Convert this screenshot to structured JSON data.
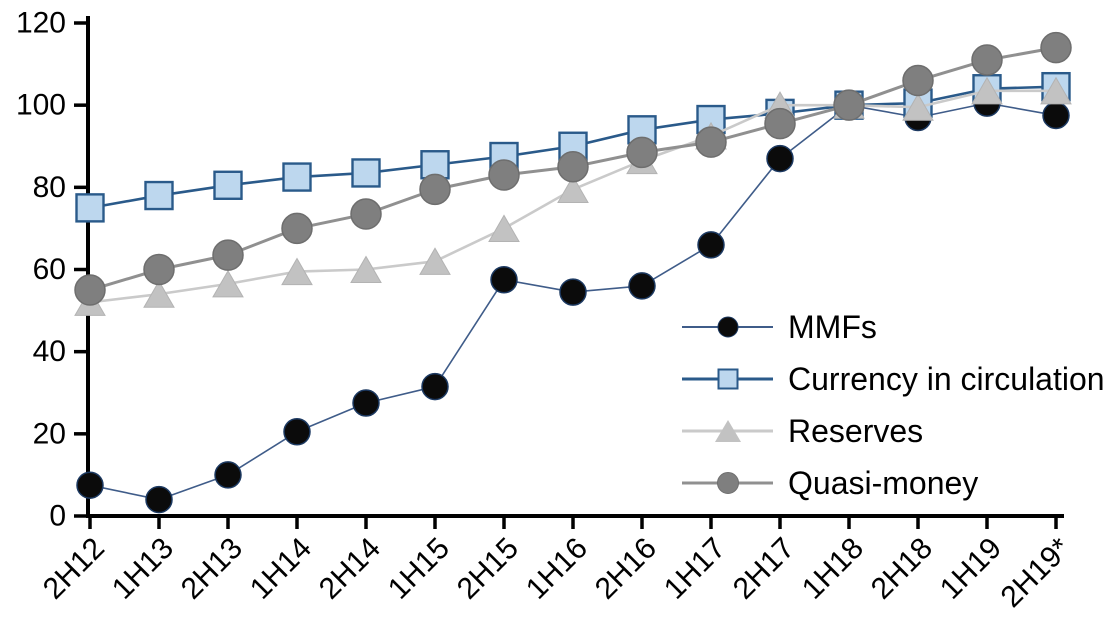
{
  "chart_data": {
    "type": "line",
    "title": "",
    "xlabel": "",
    "ylabel": "",
    "categories": [
      "2H12",
      "1H13",
      "2H13",
      "1H14",
      "2H14",
      "1H15",
      "2H15",
      "1H16",
      "2H16",
      "1H17",
      "2H17",
      "1H18",
      "2H18",
      "1H19",
      "2H19*"
    ],
    "yticks": [
      0,
      20,
      40,
      60,
      80,
      100,
      120
    ],
    "ylim": [
      0,
      120
    ],
    "grid": false,
    "legend_position": "middle-right",
    "x_label_rotation": -45,
    "series": [
      {
        "name": "MMFs",
        "marker": "circle",
        "values": [
          7.5,
          4,
          10,
          20.5,
          27.5,
          31.5,
          57.5,
          54.5,
          56,
          66,
          87,
          100,
          97,
          100.5,
          97.5
        ],
        "line_color": "#3f5c89",
        "line_width": 1.6,
        "marker_fill": "#0b0b0b",
        "marker_stroke": "#1c3961",
        "marker_size": 26
      },
      {
        "name": "Currency in circulation",
        "marker": "square",
        "values": [
          75,
          78,
          80.5,
          82.5,
          83.5,
          85.5,
          87.5,
          90,
          94,
          96.5,
          98,
          100,
          100.5,
          104,
          104.5
        ],
        "line_color": "#2a5a8a",
        "line_width": 2.6,
        "marker_fill": "#bdd7ee",
        "marker_stroke": "#2a5a8a",
        "marker_size": 27
      },
      {
        "name": "Reserves",
        "marker": "triangle",
        "values": [
          52,
          54,
          56.5,
          59.5,
          60,
          62,
          70,
          79.5,
          86.5,
          92.5,
          100,
          100,
          99.5,
          103.5,
          103.5
        ],
        "line_color": "#cacaca",
        "line_width": 2.6,
        "marker_fill": "#c2c2c2",
        "marker_stroke": "#b3b3b3",
        "marker_size": 30
      },
      {
        "name": "Quasi-money",
        "marker": "circle",
        "values": [
          55,
          60,
          63.5,
          70,
          73.5,
          79.5,
          83,
          85,
          88.5,
          91,
          95.5,
          100,
          106,
          111,
          114
        ],
        "line_color": "#909090",
        "line_width": 3,
        "marker_fill": "#7f7f7f",
        "marker_stroke": "#6e6e6e",
        "marker_size": 30
      }
    ]
  },
  "colors": {
    "background": "#ffffff",
    "axis": "#000000",
    "text": "#000000"
  }
}
